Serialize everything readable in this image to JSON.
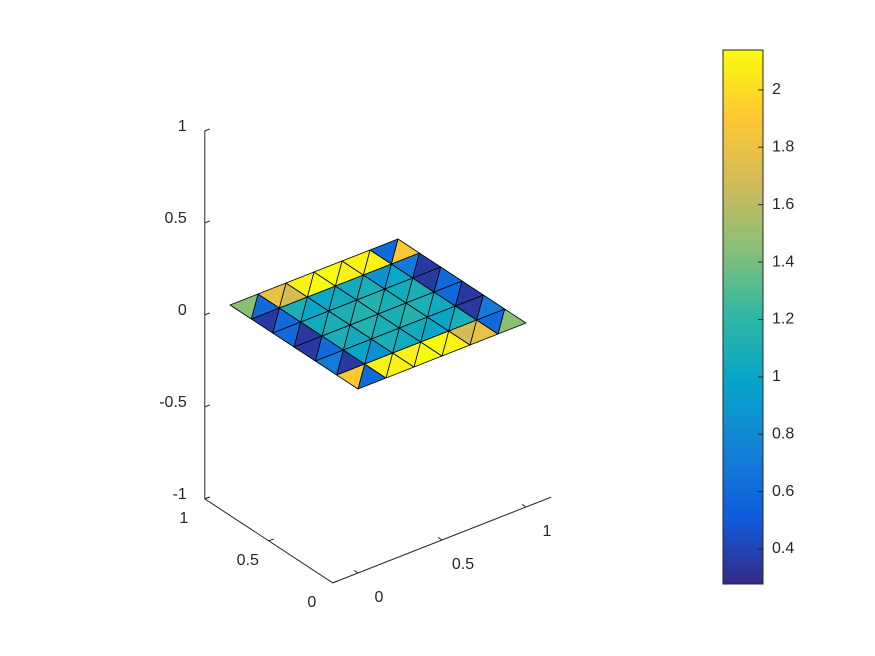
{
  "chart_data": {
    "type": "trisurf",
    "colormap": "parula",
    "x": [
      0,
      0.1667,
      0.3333,
      0.5,
      0.6667,
      0.8333,
      1
    ],
    "y": [
      0,
      0.1667,
      0.3333,
      0.5,
      0.6667,
      0.8333,
      1
    ],
    "z": 0,
    "values": [
      [
        0.6,
        1.9,
        2.1,
        2.1,
        2.15,
        2.1,
        2.1,
        2.15,
        1.8,
        1.7,
        1.45,
        0.6
      ],
      [
        0.35,
        0.7,
        0.85,
        1.0,
        1.05,
        1.1,
        1.0,
        1.05,
        1.1,
        1.0,
        0.7,
        0.35
      ],
      [
        0.6,
        0.35,
        1.05,
        1.1,
        1.1,
        1.15,
        1.15,
        1.1,
        1.05,
        1.1,
        0.35,
        0.6
      ],
      [
        0.35,
        0.6,
        1.1,
        1.05,
        1.15,
        1.1,
        1.1,
        1.15,
        1.1,
        1.05,
        0.6,
        0.35
      ],
      [
        0.6,
        0.35,
        1.0,
        1.1,
        1.05,
        1.0,
        1.1,
        1.05,
        1.0,
        0.85,
        0.35,
        0.7
      ],
      [
        0.6,
        1.45,
        1.7,
        1.8,
        2.15,
        2.1,
        2.1,
        2.15,
        2.1,
        2.1,
        1.9,
        0.6
      ]
    ],
    "xlim": [
      -0.15,
      1.15
    ],
    "xticks": [
      0,
      0.5,
      1
    ],
    "ylim": [
      0,
      1
    ],
    "yticks": [
      0,
      0.5,
      1
    ],
    "zlim": [
      -1,
      1
    ],
    "zticks": [
      -1,
      -0.5,
      0,
      0.5,
      1
    ],
    "clim": [
      0.278,
      2.139
    ],
    "cticks": [
      0.4,
      0.6,
      0.8,
      1,
      1.2,
      1.4,
      1.6,
      1.8,
      2
    ]
  }
}
